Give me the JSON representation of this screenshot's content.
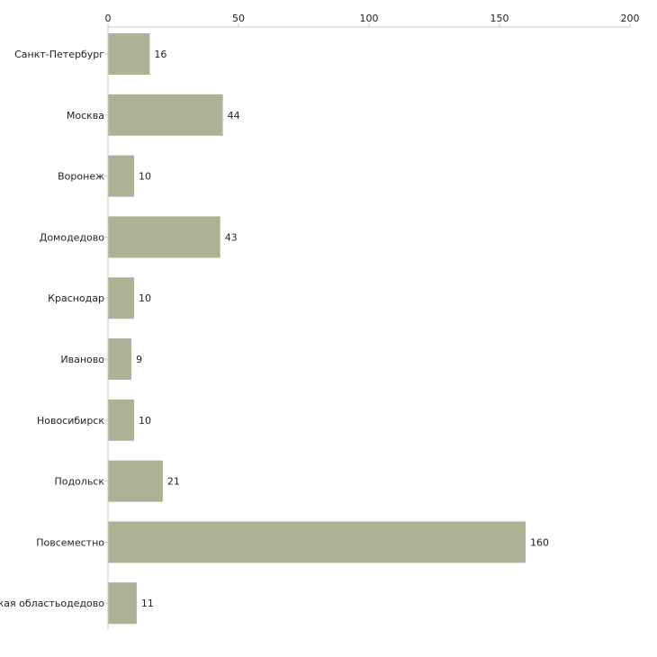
{
  "colors": {
    "bar": "#adb296",
    "axis": "#c8c8c8",
    "text": "#222222"
  },
  "chart_data": {
    "type": "bar",
    "orientation": "horizontal",
    "title": "",
    "xlabel": "",
    "ylabel": "",
    "xlim": [
      0,
      200
    ],
    "ticks": [
      0,
      50,
      100,
      150,
      200
    ],
    "axis_position": "top",
    "grid": false,
    "categories": [
      "Санкт-Петербург",
      "Москва",
      "Воронеж",
      "Домодедово",
      "Краснодар",
      "Иваново",
      "Новосибирск",
      "Подольск",
      "Повсеместно",
      "Московская областьодедово"
    ],
    "values": [
      16,
      44,
      10,
      43,
      10,
      9,
      10,
      21,
      160,
      11
    ],
    "data_labels": [
      "16",
      "44",
      "10",
      "43",
      "10",
      "9",
      "10",
      "21",
      "160",
      "11"
    ]
  }
}
